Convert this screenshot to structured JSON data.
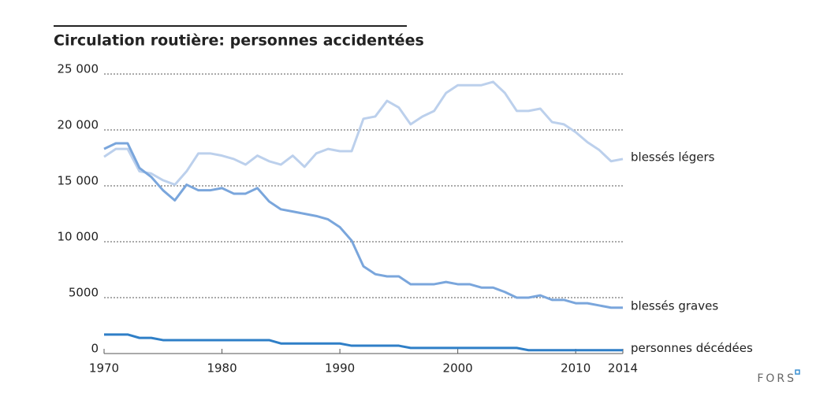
{
  "chart_data": {
    "type": "line",
    "title": "Circulation routière: personnes accidentées",
    "x": [
      1970,
      1971,
      1972,
      1973,
      1974,
      1975,
      1976,
      1977,
      1978,
      1979,
      1980,
      1981,
      1982,
      1983,
      1984,
      1985,
      1986,
      1987,
      1988,
      1989,
      1990,
      1991,
      1992,
      1993,
      1994,
      1995,
      1996,
      1997,
      1998,
      1999,
      2000,
      2001,
      2002,
      2003,
      2004,
      2005,
      2006,
      2007,
      2008,
      2009,
      2010,
      2011,
      2012,
      2013,
      2014
    ],
    "series": [
      {
        "name": "blessés légers",
        "color": "#bcd0ec",
        "values": [
          17600,
          18300,
          18300,
          16300,
          16100,
          15500,
          15100,
          16300,
          17900,
          17900,
          17700,
          17400,
          16900,
          17700,
          17200,
          16900,
          17700,
          16700,
          17900,
          18300,
          18100,
          18100,
          21000,
          21200,
          22600,
          22000,
          20500,
          21200,
          21700,
          23300,
          24000,
          24000,
          24000,
          24300,
          23300,
          21700,
          21700,
          21900,
          20700,
          20500,
          19800,
          18900,
          18200,
          17200,
          17400
        ]
      },
      {
        "name": "blessés graves",
        "color": "#7aa6dc",
        "values": [
          18300,
          18800,
          18800,
          16600,
          15800,
          14600,
          13700,
          15100,
          14600,
          14600,
          14800,
          14300,
          14300,
          14800,
          13600,
          12900,
          12700,
          12500,
          12300,
          12000,
          11300,
          10100,
          7800,
          7100,
          6900,
          6900,
          6200,
          6200,
          6200,
          6400,
          6200,
          6200,
          5900,
          5900,
          5500,
          5000,
          5000,
          5200,
          4800,
          4800,
          4500,
          4500,
          4300,
          4100,
          4100
        ]
      },
      {
        "name": "personnes décédées",
        "color": "#2f7fc7",
        "values": [
          1700,
          1700,
          1700,
          1400,
          1400,
          1200,
          1200,
          1200,
          1200,
          1200,
          1200,
          1200,
          1200,
          1200,
          1200,
          900,
          900,
          900,
          900,
          900,
          900,
          700,
          700,
          700,
          700,
          700,
          500,
          500,
          500,
          500,
          500,
          500,
          500,
          500,
          500,
          500,
          300,
          300,
          300,
          300,
          300,
          300,
          300,
          300,
          300
        ]
      }
    ],
    "xlim": [
      1970,
      2014
    ],
    "xticks": [
      1970,
      1980,
      1990,
      2000,
      2010,
      2014
    ],
    "ylim": [
      0,
      25000
    ],
    "yticks": [
      0,
      {
        "value": 5000,
        "label": "5000"
      },
      {
        "value": 10000,
        "label": "10 000"
      },
      {
        "value": 15000,
        "label": "15 000"
      },
      {
        "value": 20000,
        "label": "20 000"
      },
      {
        "value": 25000,
        "label": "25 000"
      }
    ],
    "grid": true,
    "source": "FORS"
  }
}
